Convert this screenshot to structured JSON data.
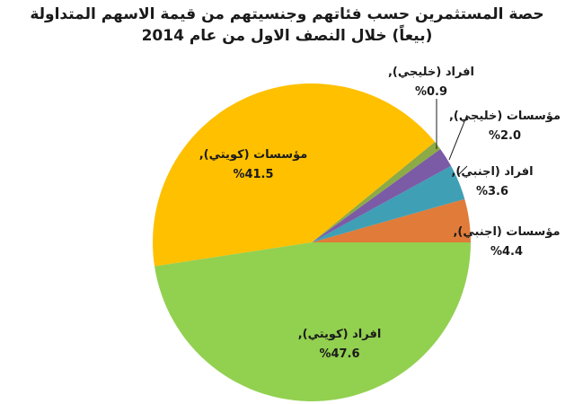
{
  "chart_data": {
    "type": "pie",
    "title_line_1": "حصة المستثمرين حسب فئاتهم وجنسيتهم من قيمة الاسهم المتداولة",
    "title_line_2": "(بيعاً) خلال النصف الاول من عام 2014",
    "slices": [
      {
        "label": "مؤسسات (اجنبي)",
        "value": 4.4,
        "display": "%4.4",
        "color": "#e07b39"
      },
      {
        "label": "افراد (اجنبي)",
        "value": 3.6,
        "display": "%3.6",
        "color": "#3f9fb5"
      },
      {
        "label": "مؤسسات (خليجي)",
        "value": 2.0,
        "display": "%2.0",
        "color": "#7b5aa6"
      },
      {
        "label": "افراد (خليجي)",
        "value": 0.9,
        "display": "%0.9",
        "color": "#8caa45"
      },
      {
        "label": "مؤسسات (كويتي)",
        "value": 41.5,
        "display": "%41.5",
        "color": "#ffc000"
      },
      {
        "label": "افراد (كويتي)",
        "value": 47.6,
        "display": "%47.6",
        "color": "#92d050"
      }
    ]
  }
}
